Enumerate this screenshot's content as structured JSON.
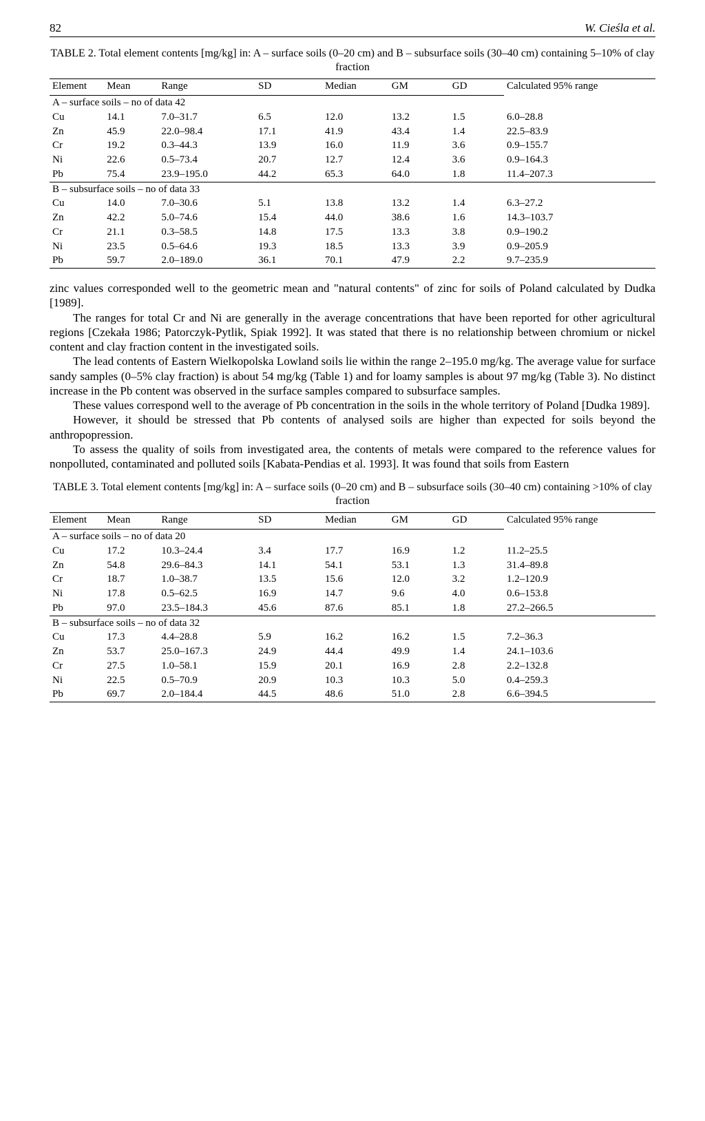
{
  "header": {
    "page": "82",
    "authors": "W. Cieśla et al."
  },
  "table2": {
    "caption": "TABLE 2. Total element contents [mg/kg] in: A – surface soils (0–20 cm) and B – subsurface soils (30–40 cm) containing 5–10% of clay fraction",
    "columns": [
      "Element",
      "Mean",
      "Range",
      "SD",
      "Median",
      "GM",
      "GD",
      "Calculated 95% range"
    ],
    "sectionA": "A – surface soils – no of data 42",
    "rowsA": [
      [
        "Cu",
        "14.1",
        "7.0–31.7",
        "6.5",
        "12.0",
        "13.2",
        "1.5",
        "6.0–28.8"
      ],
      [
        "Zn",
        "45.9",
        "22.0–98.4",
        "17.1",
        "41.9",
        "43.4",
        "1.4",
        "22.5–83.9"
      ],
      [
        "Cr",
        "19.2",
        "0.3–44.3",
        "13.9",
        "16.0",
        "11.9",
        "3.6",
        "0.9–155.7"
      ],
      [
        "Ni",
        "22.6",
        "0.5–73.4",
        "20.7",
        "12.7",
        "12.4",
        "3.6",
        "0.9–164.3"
      ],
      [
        "Pb",
        "75.4",
        "23.9–195.0",
        "44.2",
        "65.3",
        "64.0",
        "1.8",
        "11.4–207.3"
      ]
    ],
    "sectionB": "B – subsurface soils – no of data 33",
    "rowsB": [
      [
        "Cu",
        "14.0",
        "7.0–30.6",
        "5.1",
        "13.8",
        "13.2",
        "1.4",
        "6.3–27.2"
      ],
      [
        "Zn",
        "42.2",
        "5.0–74.6",
        "15.4",
        "44.0",
        "38.6",
        "1.6",
        "14.3–103.7"
      ],
      [
        "Cr",
        "21.1",
        "0.3–58.5",
        "14.8",
        "17.5",
        "13.3",
        "3.8",
        "0.9–190.2"
      ],
      [
        "Ni",
        "23.5",
        "0.5–64.6",
        "19.3",
        "18.5",
        "13.3",
        "3.9",
        "0.9–205.9"
      ],
      [
        "Pb",
        "59.7",
        "2.0–189.0",
        "36.1",
        "70.1",
        "47.9",
        "2.2",
        "9.7–235.9"
      ]
    ]
  },
  "paragraphs": [
    "zinc values corresponded well to the geometric mean and \"natural contents\" of zinc for soils of Poland calculated by Dudka [1989].",
    "The ranges for total Cr and Ni are generally in the average concentrations that have been reported for other agricultural regions [Czekała 1986; Patorczyk-Pytlik, Spiak 1992]. It was stated that there is no relationship between chromium or nickel content and clay fraction content in the investigated soils.",
    "The lead contents of Eastern Wielkopolska Lowland soils lie within the range 2–195.0 mg/kg. The average value for surface sandy samples (0–5% clay fraction) is about 54 mg/kg (Table 1) and for loamy samples is about 97 mg/kg (Table 3). No distinct increase in the Pb content was observed in the surface samples compared to subsurface samples.",
    "These values correspond well to the average of Pb concentration in the soils in the whole territory of Poland [Dudka 1989].",
    "However, it should be stressed that Pb contents of analysed soils are higher than expected for soils beyond the anthropopression.",
    "To assess the quality of soils from investigated area, the contents of metals were compared to the reference values for nonpolluted, contaminated and polluted soils [Kabata-Pendias et al. 1993]. It was found that soils from Eastern"
  ],
  "table3": {
    "caption": "TABLE 3. Total element contents [mg/kg] in: A – surface soils (0–20 cm) and B – subsurface soils (30–40 cm) containing >10% of clay fraction",
    "columns": [
      "Element",
      "Mean",
      "Range",
      "SD",
      "Median",
      "GM",
      "GD",
      "Calculated 95% range"
    ],
    "sectionA": "A – surface soils – no of data 20",
    "rowsA": [
      [
        "Cu",
        "17.2",
        "10.3–24.4",
        "3.4",
        "17.7",
        "16.9",
        "1.2",
        "11.2–25.5"
      ],
      [
        "Zn",
        "54.8",
        "29.6–84.3",
        "14.1",
        "54.1",
        "53.1",
        "1.3",
        "31.4–89.8"
      ],
      [
        "Cr",
        "18.7",
        "1.0–38.7",
        "13.5",
        "15.6",
        "12.0",
        "3.2",
        "1.2–120.9"
      ],
      [
        "Ni",
        "17.8",
        "0.5–62.5",
        "16.9",
        "14.7",
        "9.6",
        "4.0",
        "0.6–153.8"
      ],
      [
        "Pb",
        "97.0",
        "23.5–184.3",
        "45.6",
        "87.6",
        "85.1",
        "1.8",
        "27.2–266.5"
      ]
    ],
    "sectionB": "B – subsurface soils – no of data 32",
    "rowsB": [
      [
        "Cu",
        "17.3",
        "4.4–28.8",
        "5.9",
        "16.2",
        "16.2",
        "1.5",
        "7.2–36.3"
      ],
      [
        "Zn",
        "53.7",
        "25.0–167.3",
        "24.9",
        "44.4",
        "49.9",
        "1.4",
        "24.1–103.6"
      ],
      [
        "Cr",
        "27.5",
        "1.0–58.1",
        "15.9",
        "20.1",
        "16.9",
        "2.8",
        "2.2–132.8"
      ],
      [
        "Ni",
        "22.5",
        "0.5–70.9",
        "20.9",
        "10.3",
        "10.3",
        "5.0",
        "0.4–259.3"
      ],
      [
        "Pb",
        "69.7",
        "2.0–184.4",
        "44.5",
        "48.6",
        "51.0",
        "2.8",
        "6.6–394.5"
      ]
    ]
  }
}
